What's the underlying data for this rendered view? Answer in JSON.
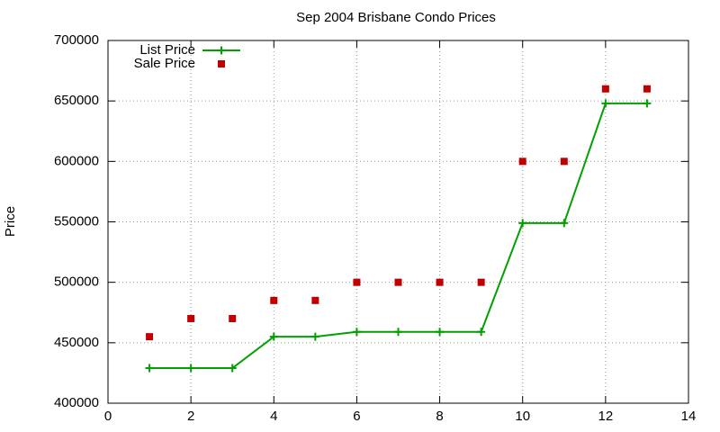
{
  "chart_data": {
    "type": "line",
    "title": "Sep 2004 Brisbane Condo Prices",
    "y_label": "Price",
    "x": [
      1,
      2,
      3,
      4,
      5,
      6,
      7,
      8,
      9,
      10,
      11,
      12,
      13
    ],
    "series": [
      {
        "name": "List Price",
        "color": "#00a000",
        "mode": "lines+markers",
        "values": [
          429000,
          429000,
          429000,
          455000,
          455000,
          459000,
          459000,
          459000,
          459000,
          549000,
          549000,
          648000,
          648000
        ]
      },
      {
        "name": "Sale Price",
        "color": "#c00000",
        "mode": "markers",
        "values": [
          455000,
          470000,
          470000,
          485000,
          485000,
          500000,
          500000,
          500000,
          500000,
          600000,
          600000,
          660000,
          660000
        ]
      }
    ],
    "xlim": [
      0,
      14
    ],
    "xticks": [
      0,
      2,
      4,
      6,
      8,
      10,
      12,
      14
    ],
    "ylim": [
      400000,
      700000
    ],
    "yticks": [
      400000,
      450000,
      500000,
      550000,
      600000,
      650000,
      700000
    ],
    "grid": true,
    "legend": "top-left"
  }
}
